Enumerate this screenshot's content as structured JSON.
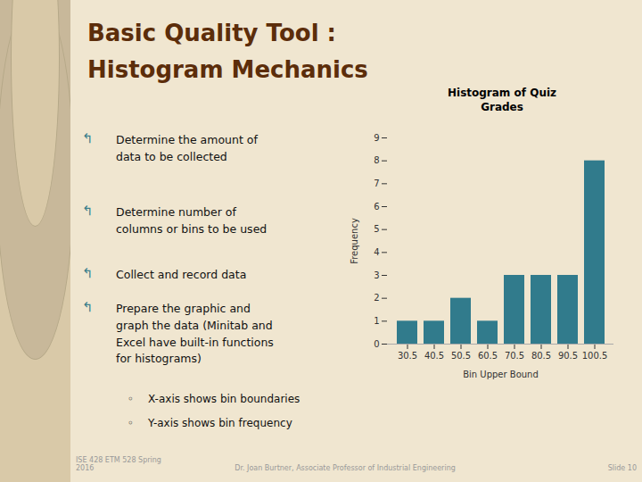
{
  "chart_data": {
    "type": "bar",
    "title": "Histogram of Quiz\nGrades",
    "categories": [
      "30.5",
      "40.5",
      "50.5",
      "60.5",
      "70.5",
      "80.5",
      "90.5",
      "100.5"
    ],
    "values": [
      1,
      1,
      2,
      1,
      3,
      3,
      3,
      8
    ],
    "color": "#317B8C",
    "xlabel": "Bin Upper Bound",
    "ylabel": "Frequency",
    "ylim": [
      0,
      9
    ],
    "yticks": [
      0,
      1,
      2,
      3,
      4,
      5,
      6,
      7,
      8,
      9
    ],
    "grid": false,
    "annotations": [
      "Basic Quality Tool :",
      "Histogram Mechanics",
      "↰",
      "Determine the amount of\ndata to be collected",
      "Determine number of\ncolumns or bins to be used",
      "Collect and record data",
      "Prepare the graphic and\ngraph the data (Minitab and\nExcel have built-in functions\nfor histograms)",
      "◦",
      "X-axis shows bin boundaries",
      "Y-axis shows bin frequency",
      "ISE 428 ETM 528 Spring\n2016",
      "Dr. Joan Burtner, Associate Professor of Industrial Engineering",
      "Slide 10"
    ]
  }
}
